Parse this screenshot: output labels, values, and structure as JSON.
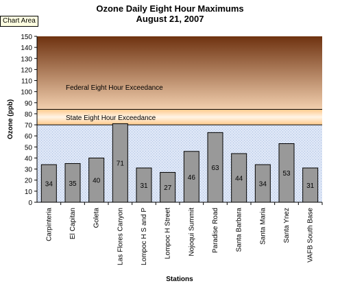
{
  "tooltip": "Chart Area",
  "chart_data": {
    "type": "bar",
    "title": "Ozone Daily Eight Hour Maximums",
    "subtitle": "August 21, 2007",
    "xlabel": "Stations",
    "ylabel": "Ozone (ppb)",
    "ylim": [
      0,
      150
    ],
    "yticks": [
      0,
      10,
      20,
      30,
      40,
      50,
      60,
      70,
      80,
      90,
      100,
      110,
      120,
      130,
      140,
      150
    ],
    "categories": [
      "Carpinteria",
      "El Capitan",
      "Goleta",
      "Las Flores Canyon",
      "Lompoc H S and P",
      "Lompoc H Street",
      "Nojoqui Summit",
      "Paradise Road",
      "Santa Barbara",
      "Santa Maria",
      "Santa Ynez",
      "VAFB South Base"
    ],
    "values": [
      34,
      35,
      40,
      71,
      31,
      27,
      46,
      63,
      44,
      34,
      53,
      31
    ],
    "data_labels": [
      "34",
      "35",
      "40",
      "71",
      "31",
      "27",
      "46",
      "63",
      "44",
      "34",
      "53",
      "31"
    ],
    "thresholds": [
      {
        "label": "Federal Eight Hour Exceedance",
        "value": 84
      },
      {
        "label": "State Eight Hour Exceedance",
        "value": 70
      }
    ],
    "colors": {
      "bar": "#999999",
      "bar_border": "#000000",
      "federal_top": "#7a3a12",
      "federal_bottom": "#f0c8a4",
      "state_band": "#ffd9a8",
      "below": "#c8d8f0"
    }
  }
}
